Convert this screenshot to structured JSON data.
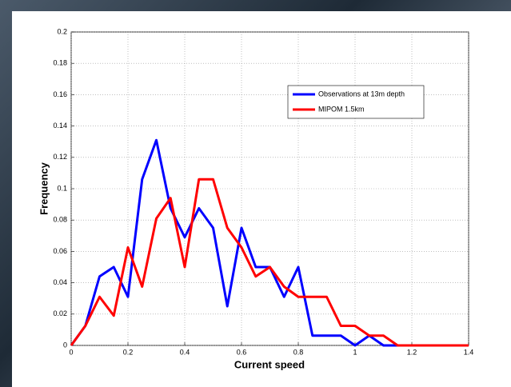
{
  "chart_data": {
    "type": "line",
    "xlabel": "Current speed",
    "ylabel": "Frequency",
    "x": [
      0,
      0.05,
      0.1,
      0.15,
      0.2,
      0.25,
      0.3,
      0.35,
      0.4,
      0.45,
      0.5,
      0.55,
      0.6,
      0.65,
      0.7,
      0.75,
      0.8,
      0.85,
      0.9,
      0.95,
      1,
      1.05,
      1.1,
      1.15,
      1.2,
      1.25,
      1.3,
      1.35,
      1.4
    ],
    "series": [
      {
        "name": "Observations at 13m depth",
        "color": "#0000ff",
        "values": [
          0,
          0.0125,
          0.044,
          0.05,
          0.031,
          0.106,
          0.131,
          0.0875,
          0.069,
          0.0875,
          0.075,
          0.025,
          0.075,
          0.05,
          0.05,
          0.031,
          0.05,
          0.00625,
          0.00625,
          0.00625,
          0,
          0.00625,
          0,
          0,
          null,
          null,
          null,
          null,
          null
        ]
      },
      {
        "name": "MIPOM 1.5km",
        "color": "#ff0000",
        "values": [
          0,
          0.0125,
          0.031,
          0.019,
          0.0625,
          0.0375,
          0.081,
          0.094,
          0.05,
          0.106,
          0.106,
          0.075,
          0.0625,
          0.044,
          0.05,
          0.0375,
          0.031,
          0.031,
          0.031,
          0.0125,
          0.0125,
          0.00625,
          0.00625,
          0,
          0,
          0,
          0,
          0,
          0
        ]
      }
    ],
    "xlim": [
      0,
      1.4
    ],
    "xticks": [
      0,
      0.2,
      0.4,
      0.6,
      0.8,
      1,
      1.2,
      1.4
    ],
    "ylim": [
      0,
      0.2
    ],
    "yticks": [
      0,
      0.02,
      0.04,
      0.06,
      0.08,
      0.1,
      0.12,
      0.14,
      0.16,
      0.18,
      0.2
    ],
    "grid": true,
    "legend": "upper right"
  }
}
